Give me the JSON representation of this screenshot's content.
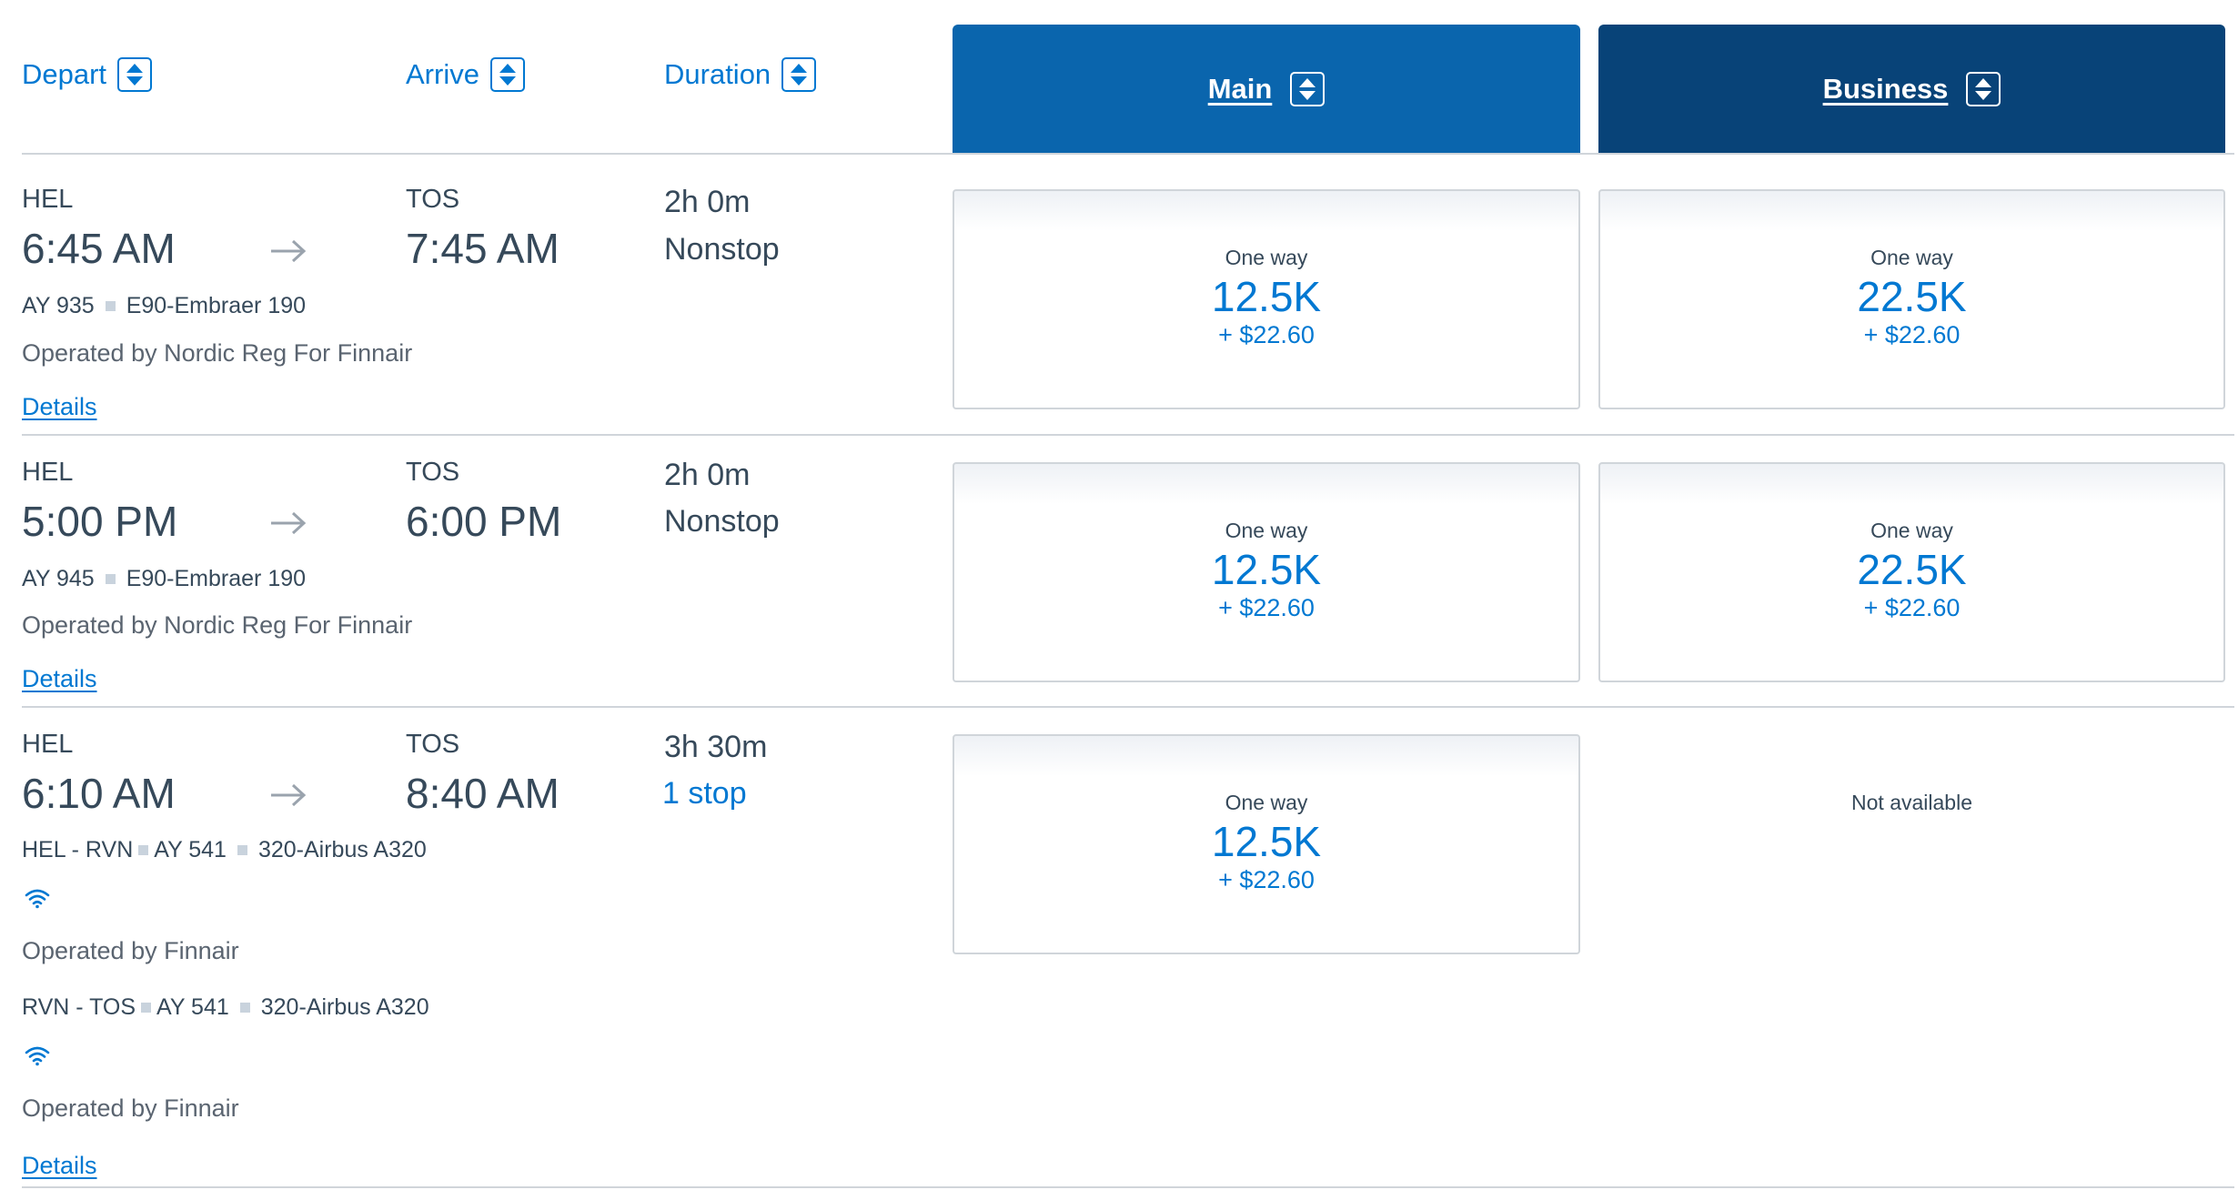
{
  "header": {
    "depart_label": "Depart",
    "arrive_label": "Arrive",
    "duration_label": "Duration",
    "main_label": "Main",
    "business_label": "Business"
  },
  "colors": {
    "link_blue": "#0078d2",
    "main_header": "#0a65ad",
    "business_header": "#084378",
    "text": "#36495a",
    "divider": "#d0d5da"
  },
  "icons": [
    "sort-icon",
    "arrow-right-icon",
    "wifi-icon"
  ],
  "flights": [
    {
      "origin": "HEL",
      "depart_time": "6:45 AM",
      "destination": "TOS",
      "arrive_time": "7:45 AM",
      "duration": "2h 0m",
      "stops": "Nonstop",
      "flight_number": "AY 935",
      "aircraft": "E90-Embraer 190",
      "operated_by": "Operated by Nordic Reg For Finnair",
      "details_label": "Details",
      "main": {
        "label": "One way",
        "miles": "12.5K",
        "taxes": "+ $22.60"
      },
      "business": {
        "label": "One way",
        "miles": "22.5K",
        "taxes": "+ $22.60"
      }
    },
    {
      "origin": "HEL",
      "depart_time": "5:00 PM",
      "destination": "TOS",
      "arrive_time": "6:00 PM",
      "duration": "2h 0m",
      "stops": "Nonstop",
      "flight_number": "AY 945",
      "aircraft": "E90-Embraer 190",
      "operated_by": "Operated by Nordic Reg For Finnair",
      "details_label": "Details",
      "main": {
        "label": "One way",
        "miles": "12.5K",
        "taxes": "+ $22.60"
      },
      "business": {
        "label": "One way",
        "miles": "22.5K",
        "taxes": "+ $22.60"
      }
    },
    {
      "origin": "HEL",
      "depart_time": "6:10 AM",
      "destination": "TOS",
      "arrive_time": "8:40 AM",
      "duration": "3h 30m",
      "stops": "1 stop",
      "segments": [
        {
          "route": "HEL - RVN",
          "flight_number": "AY 541",
          "aircraft": "320-Airbus A320",
          "operated_by": "Operated by Finnair"
        },
        {
          "route": "RVN - TOS",
          "flight_number": "AY 541",
          "aircraft": "320-Airbus A320",
          "operated_by": "Operated by Finnair"
        }
      ],
      "details_label": "Details",
      "main": {
        "label": "One way",
        "miles": "12.5K",
        "taxes": "+ $22.60"
      },
      "business": {
        "not_available": "Not available"
      }
    }
  ]
}
